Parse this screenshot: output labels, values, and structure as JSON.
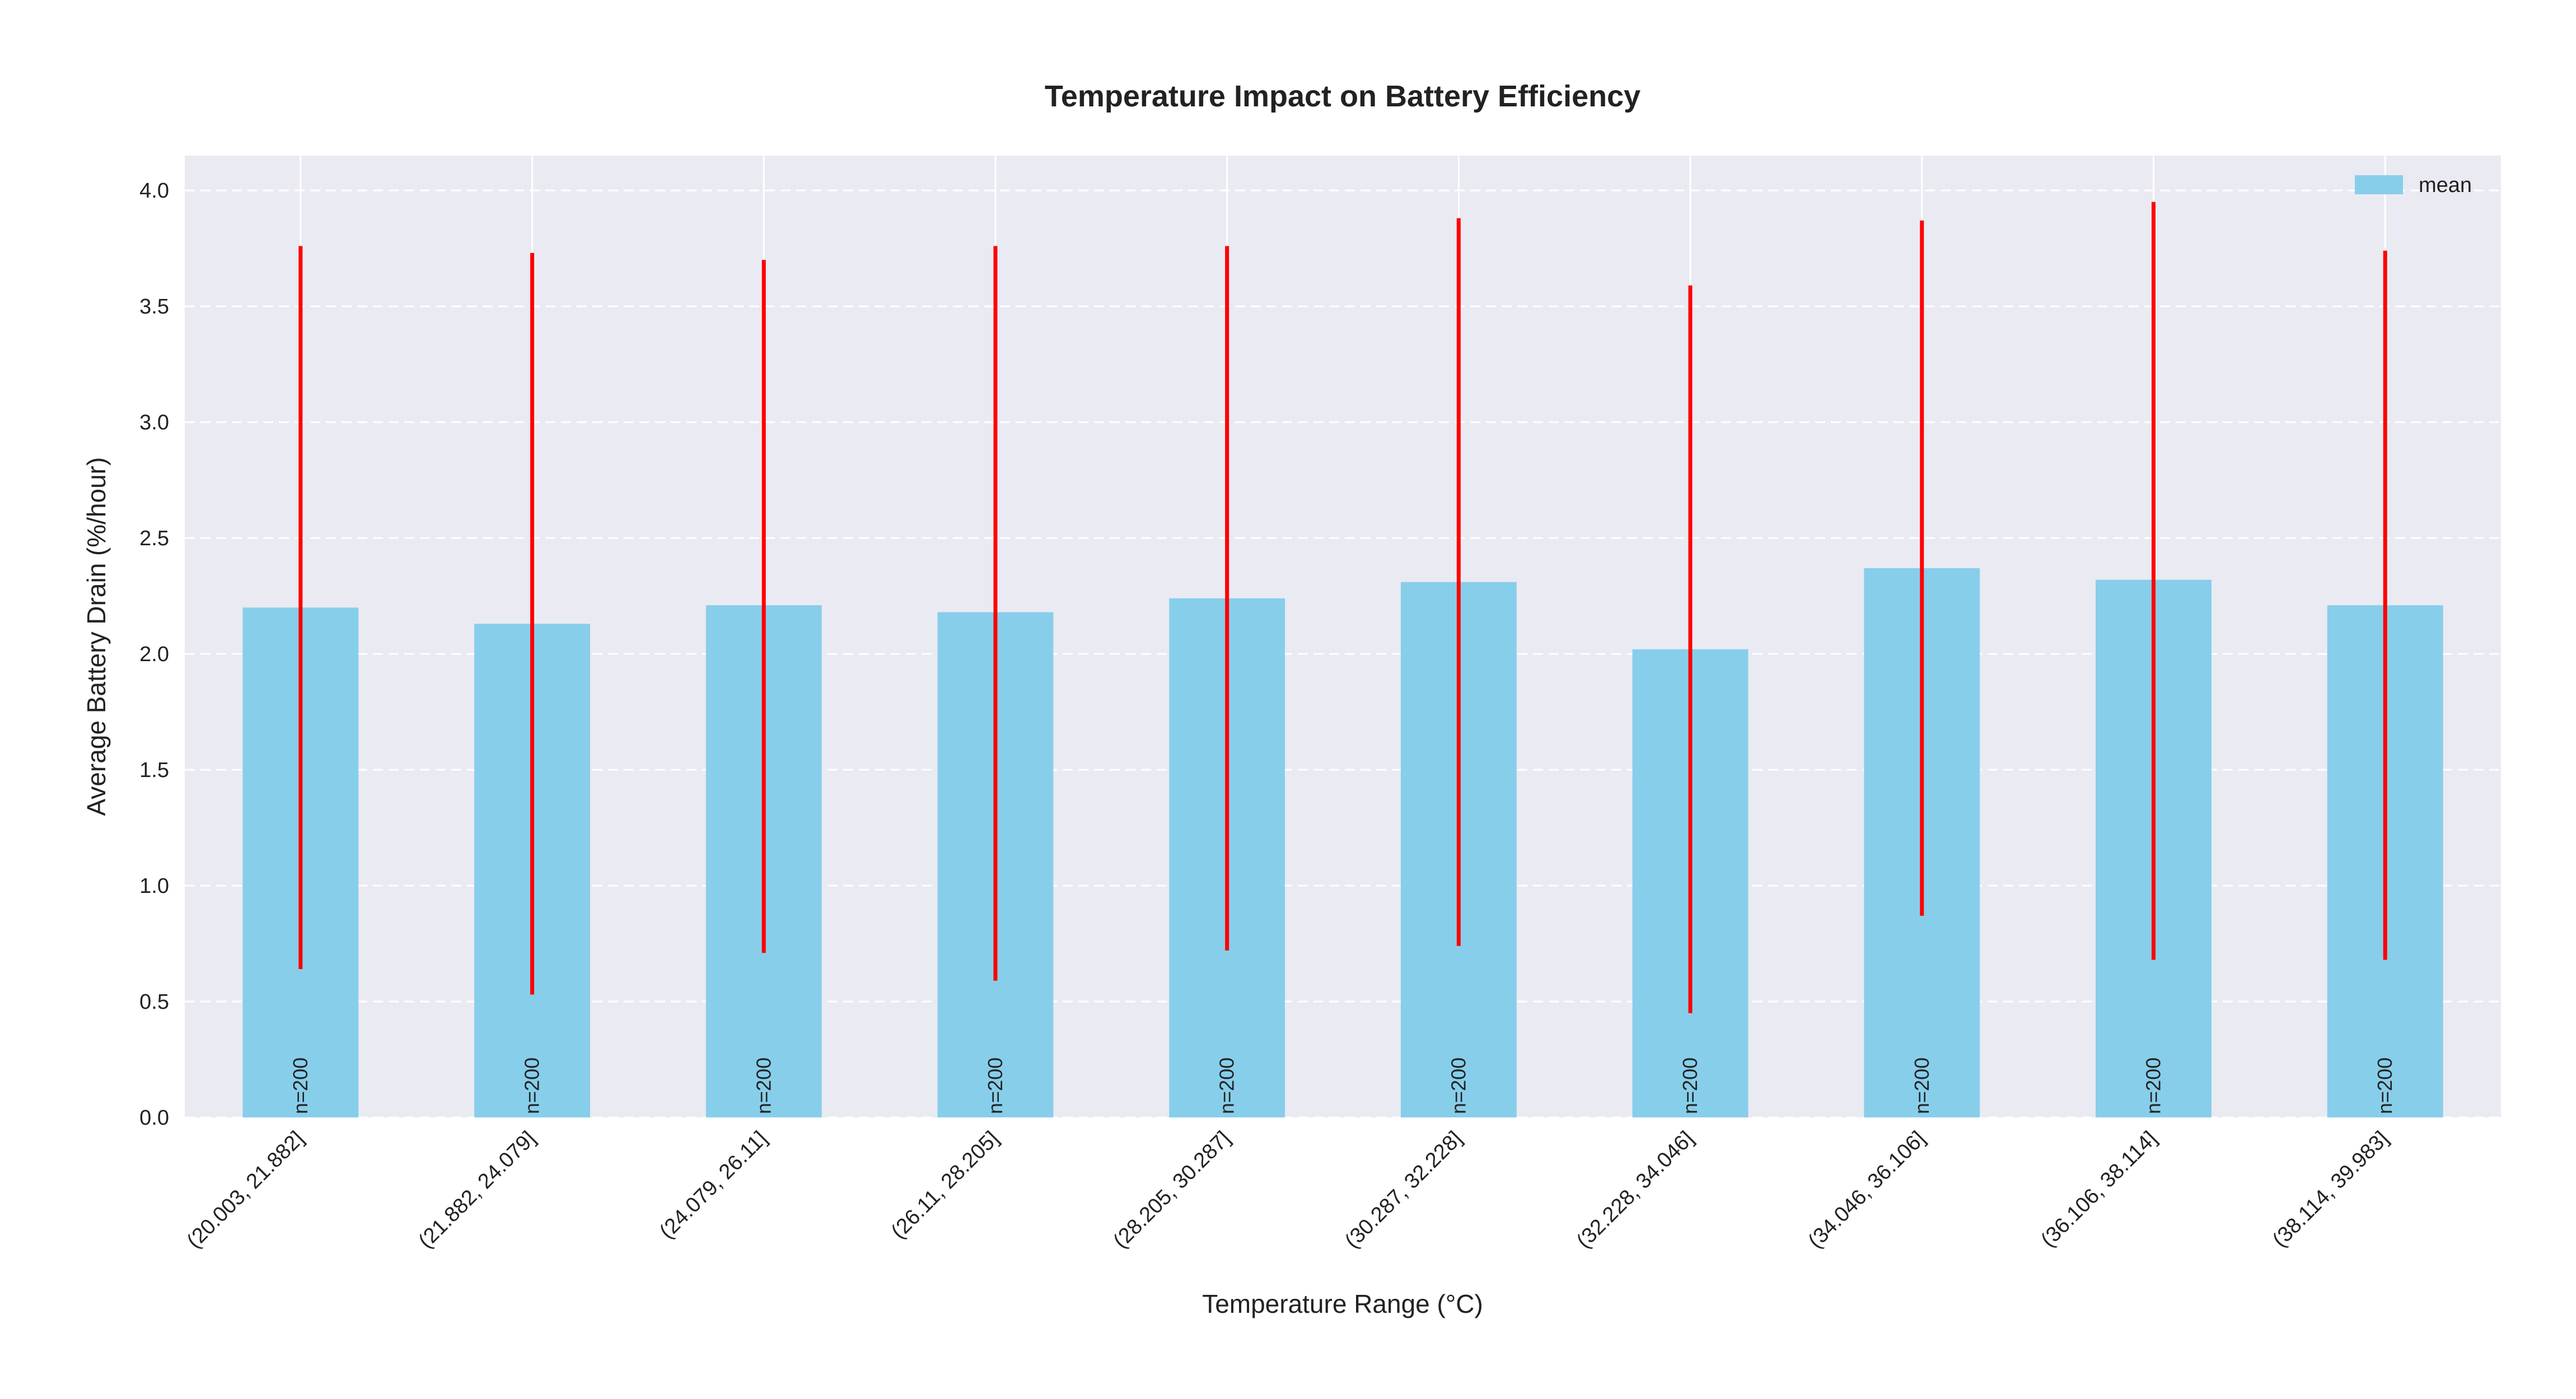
{
  "chart_data": {
    "type": "bar",
    "title": "Temperature Impact on Battery Efficiency",
    "xlabel": "Temperature Range (°C)",
    "ylabel": "Average Battery Drain (%/hour)",
    "categories": [
      "(20.003, 21.882]",
      "(21.882, 24.079]",
      "(24.079, 26.11]",
      "(26.11, 28.205]",
      "(28.205, 30.287]",
      "(30.287, 32.228]",
      "(32.228, 34.046]",
      "(34.046, 36.106]",
      "(36.106, 38.114]",
      "(38.114, 39.983]"
    ],
    "series": [
      {
        "name": "mean",
        "values": [
          2.2,
          2.13,
          2.21,
          2.18,
          2.24,
          2.31,
          2.02,
          2.37,
          2.32,
          2.21
        ],
        "error_low": [
          0.64,
          0.53,
          0.71,
          0.59,
          0.72,
          0.74,
          0.45,
          0.87,
          0.68,
          0.68
        ],
        "error_high": [
          3.76,
          3.73,
          3.7,
          3.76,
          3.76,
          3.88,
          3.59,
          3.87,
          3.95,
          3.74
        ]
      }
    ],
    "count_labels": [
      "n=200",
      "n=200",
      "n=200",
      "n=200",
      "n=200",
      "n=200",
      "n=200",
      "n=200",
      "n=200",
      "n=200"
    ],
    "ylim": [
      0,
      4.15
    ],
    "yticks": [
      "0.0",
      "0.5",
      "1.0",
      "1.5",
      "2.0",
      "2.5",
      "3.0",
      "3.5",
      "4.0"
    ],
    "grid": true,
    "legend_position": "top-right",
    "colors": {
      "bar": "#87ceeb",
      "error": "#ff0000",
      "plot_bg": "#eaeaf2",
      "grid": "#ffffff",
      "text": "#222222"
    }
  }
}
